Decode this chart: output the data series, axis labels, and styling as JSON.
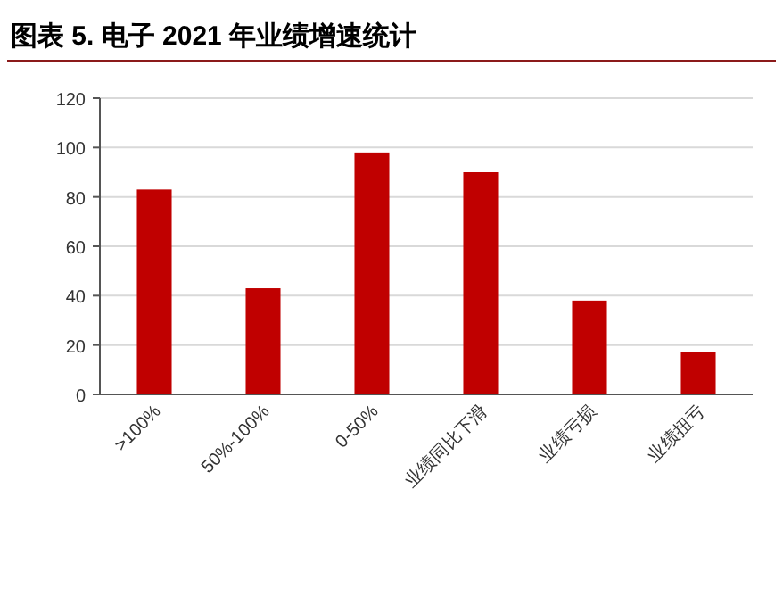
{
  "chart_data": {
    "type": "bar",
    "title": "图表 5. 电子 2021 年业绩增速统计",
    "categories": [
      ">100%",
      "50%-100%",
      "0-50%",
      "业绩同比下滑",
      "业绩亏损",
      "业绩扭亏"
    ],
    "values": [
      83,
      43,
      98,
      90,
      38,
      17
    ],
    "color": "#c00000",
    "ylim": [
      0,
      120
    ],
    "yticks": [
      0,
      20,
      40,
      60,
      80,
      100,
      120
    ],
    "grid": "y",
    "legend": false
  }
}
